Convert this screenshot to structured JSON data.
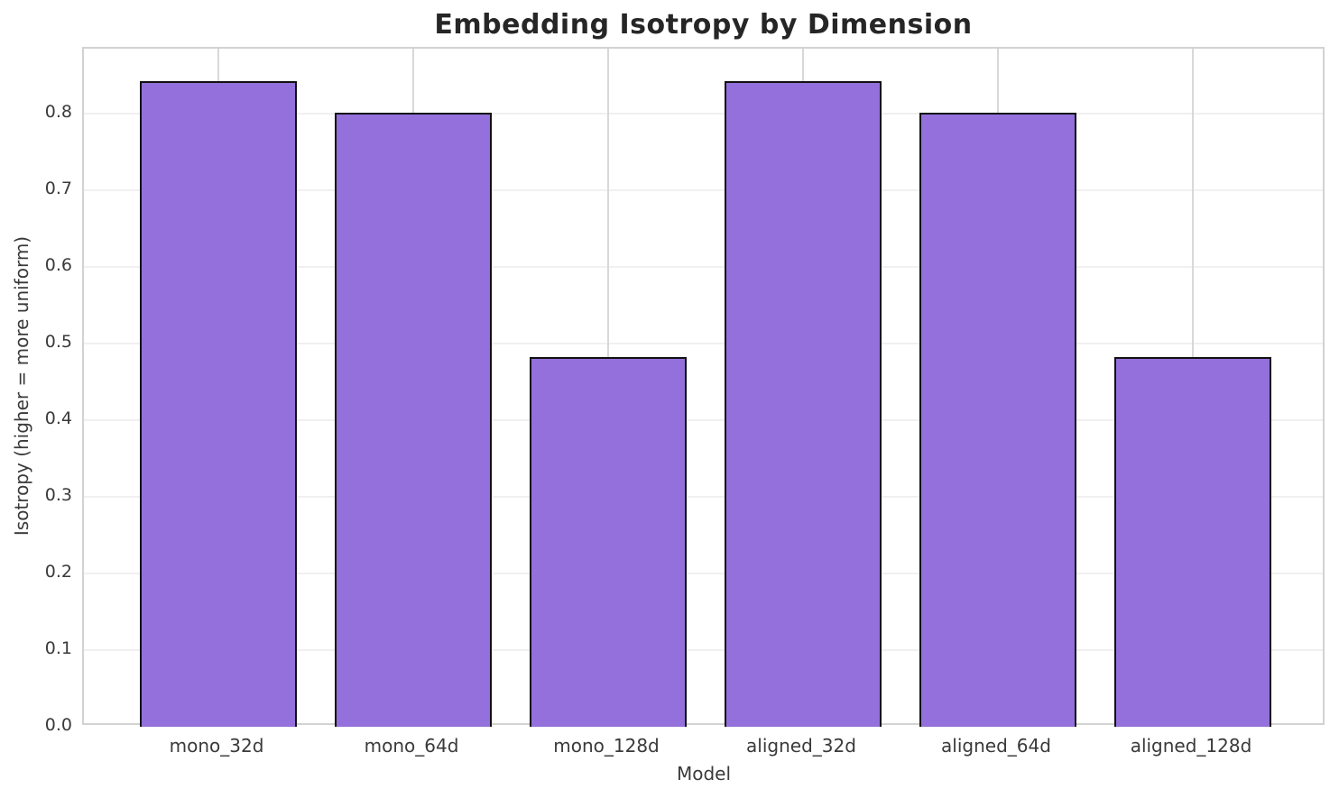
{
  "chart_data": {
    "type": "bar",
    "title": "Embedding Isotropy by Dimension",
    "xlabel": "Model",
    "ylabel": "Isotropy (higher = more uniform)",
    "categories": [
      "mono_32d",
      "mono_64d",
      "mono_128d",
      "aligned_32d",
      "aligned_64d",
      "aligned_128d"
    ],
    "values": [
      0.843,
      0.801,
      0.482,
      0.843,
      0.801,
      0.482
    ],
    "ylim": [
      0,
      0.885
    ],
    "yticks": [
      0.0,
      0.1,
      0.2,
      0.3,
      0.4,
      0.5,
      0.6,
      0.7,
      0.8
    ],
    "grid": "both",
    "legend": "none",
    "colors": {
      "bar_fill": "#9370DB",
      "bar_edge": "#111111",
      "grid_horizontal": "#f0f0f0",
      "grid_vertical": "#d8d8d8",
      "spine": "#d2d2d2",
      "tick_text": "#3a3a3a",
      "title_text": "#262626",
      "background": "#ffffff"
    }
  }
}
